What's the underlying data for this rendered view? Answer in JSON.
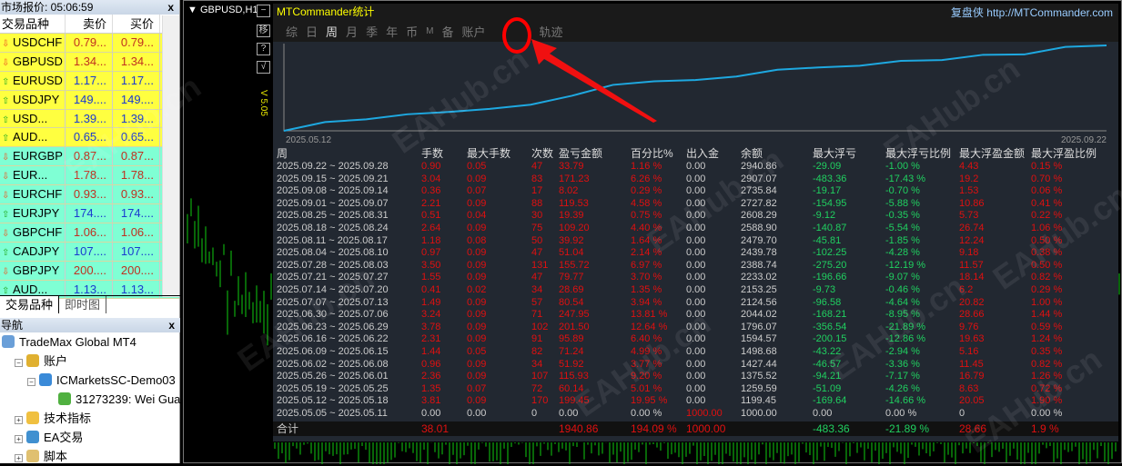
{
  "market_watch": {
    "title": "市场报价: 05:06:59",
    "close": "x",
    "headers": [
      "交易品种",
      "卖价",
      "买价"
    ],
    "rows": [
      {
        "symbol": "USDCHF",
        "bid": "0.79...",
        "ask": "0.79...",
        "dir": "down",
        "bg": "#ffff40"
      },
      {
        "symbol": "GBPUSD",
        "bid": "1.34...",
        "ask": "1.34...",
        "dir": "down",
        "bg": "#ffff40"
      },
      {
        "symbol": "EURUSD",
        "bid": "1.17...",
        "ask": "1.17...",
        "dir": "up",
        "bg": "#ffff40"
      },
      {
        "symbol": "USDJPY",
        "bid": "149....",
        "ask": "149....",
        "dir": "up",
        "bg": "#ffff40"
      },
      {
        "symbol": "USD...",
        "bid": "1.39...",
        "ask": "1.39...",
        "dir": "up",
        "bg": "#ffff40"
      },
      {
        "symbol": "AUD...",
        "bid": "0.65...",
        "ask": "0.65...",
        "dir": "up",
        "bg": "#ffff40"
      },
      {
        "symbol": "EURGBP",
        "bid": "0.87...",
        "ask": "0.87...",
        "dir": "down",
        "bg": "#7fffd4"
      },
      {
        "symbol": "EUR...",
        "bid": "1.78...",
        "ask": "1.78...",
        "dir": "down",
        "bg": "#7fffd4"
      },
      {
        "symbol": "EURCHF",
        "bid": "0.93...",
        "ask": "0.93...",
        "dir": "down",
        "bg": "#7fffd4"
      },
      {
        "symbol": "EURJPY",
        "bid": "174....",
        "ask": "174....",
        "dir": "up",
        "bg": "#7fffd4"
      },
      {
        "symbol": "GBPCHF",
        "bid": "1.06...",
        "ask": "1.06...",
        "dir": "down",
        "bg": "#7fffd4"
      },
      {
        "symbol": "CADJPY",
        "bid": "107....",
        "ask": "107....",
        "dir": "up",
        "bg": "#7fffd4"
      },
      {
        "symbol": "GBPJPY",
        "bid": "200....",
        "ask": "200....",
        "dir": "down",
        "bg": "#7fffd4"
      },
      {
        "symbol": "AUD...",
        "bid": "1.13...",
        "ask": "1.13...",
        "dir": "up",
        "bg": "#7fffd4"
      }
    ],
    "tabs": [
      "交易品种",
      "即时图"
    ]
  },
  "navigator": {
    "title": "导航",
    "close": "x",
    "items": [
      {
        "label": "TradeMax Global MT4",
        "level": 0,
        "icon": "terminal-icon",
        "color": "#6a9fd8"
      },
      {
        "label": "账户",
        "level": 1,
        "icon": "accounts-icon",
        "color": "#e0b030",
        "pm": "−"
      },
      {
        "label": "ICMarketsSC-Demo03",
        "level": 2,
        "icon": "server-icon",
        "color": "#3a8ad8",
        "pm": "−"
      },
      {
        "label": "31273239: Wei Gua",
        "level": 3,
        "icon": "user-icon",
        "color": "#50b040"
      },
      {
        "label": "技术指标",
        "level": 1,
        "icon": "indicator-icon",
        "color": "#f0c040",
        "pm": "+"
      },
      {
        "label": "EA交易",
        "level": 1,
        "icon": "expert-icon",
        "color": "#4090d0",
        "pm": "+"
      },
      {
        "label": "脚本",
        "level": 1,
        "icon": "script-icon",
        "color": "#e0c070",
        "pm": "+"
      }
    ]
  },
  "chart": {
    "symbol": "GBPUSD,H1",
    "side_buttons": [
      "−",
      "移",
      "?",
      "√"
    ],
    "version": "V 5.05"
  },
  "panel": {
    "title": "MTCommander统计",
    "brand": "复盘侠",
    "link": "http://MTCommander.com",
    "tabs": [
      "综",
      "日",
      "周",
      "月",
      "季",
      "年",
      "币",
      "M",
      "备",
      "账户",
      "轨迹"
    ],
    "active_tab": "周",
    "equity": {
      "start_label": "2025.05.12",
      "end_label": "2025.09.22"
    },
    "columns": [
      "周",
      "手数",
      "最大手数",
      "次数",
      "盈亏金额",
      "百分比%",
      "出入金",
      "余额",
      "最大浮亏",
      "最大浮亏比例",
      "最大浮盈金额",
      "最大浮盈比例"
    ],
    "rows": [
      [
        "2025.09.22 ~ 2025.09.28",
        "0.90",
        "0.05",
        "47",
        "33.79",
        "1.16 %",
        "0.00",
        "2940.86",
        "-29.09",
        "-1.00 %",
        "4.43",
        "0.15 %"
      ],
      [
        "2025.09.15 ~ 2025.09.21",
        "3.04",
        "0.09",
        "83",
        "171.23",
        "6.26 %",
        "0.00",
        "2907.07",
        "-483.36",
        "-17.43 %",
        "19.2",
        "0.70 %"
      ],
      [
        "2025.09.08 ~ 2025.09.14",
        "0.36",
        "0.07",
        "17",
        "8.02",
        "0.29 %",
        "0.00",
        "2735.84",
        "-19.17",
        "-0.70 %",
        "1.53",
        "0.06 %"
      ],
      [
        "2025.09.01 ~ 2025.09.07",
        "2.21",
        "0.09",
        "88",
        "119.53",
        "4.58 %",
        "0.00",
        "2727.82",
        "-154.95",
        "-5.88 %",
        "10.86",
        "0.41 %"
      ],
      [
        "2025.08.25 ~ 2025.08.31",
        "0.51",
        "0.04",
        "30",
        "19.39",
        "0.75 %",
        "0.00",
        "2608.29",
        "-9.12",
        "-0.35 %",
        "5.73",
        "0.22 %"
      ],
      [
        "2025.08.18 ~ 2025.08.24",
        "2.64",
        "0.09",
        "75",
        "109.20",
        "4.40 %",
        "0.00",
        "2588.90",
        "-140.87",
        "-5.54 %",
        "26.74",
        "1.06 %"
      ],
      [
        "2025.08.11 ~ 2025.08.17",
        "1.18",
        "0.08",
        "50",
        "39.92",
        "1.64 %",
        "0.00",
        "2479.70",
        "-45.81",
        "-1.85 %",
        "12.24",
        "0.50 %"
      ],
      [
        "2025.08.04 ~ 2025.08.10",
        "0.97",
        "0.09",
        "47",
        "51.04",
        "2.14 %",
        "0.00",
        "2439.78",
        "-102.25",
        "-4.28 %",
        "9.18",
        "0.38 %"
      ],
      [
        "2025.07.28 ~ 2025.08.03",
        "3.50",
        "0.09",
        "131",
        "155.72",
        "6.97 %",
        "0.00",
        "2388.74",
        "-275.20",
        "-12.19 %",
        "11.57",
        "0.50 %"
      ],
      [
        "2025.07.21 ~ 2025.07.27",
        "1.55",
        "0.09",
        "47",
        "79.77",
        "3.70 %",
        "0.00",
        "2233.02",
        "-196.66",
        "-9.07 %",
        "18.14",
        "0.82 %"
      ],
      [
        "2025.07.14 ~ 2025.07.20",
        "0.41",
        "0.02",
        "34",
        "28.69",
        "1.35 %",
        "0.00",
        "2153.25",
        "-9.73",
        "-0.46 %",
        "6.2",
        "0.29 %"
      ],
      [
        "2025.07.07 ~ 2025.07.13",
        "1.49",
        "0.09",
        "57",
        "80.54",
        "3.94 %",
        "0.00",
        "2124.56",
        "-96.58",
        "-4.64 %",
        "20.82",
        "1.00 %"
      ],
      [
        "2025.06.30 ~ 2025.07.06",
        "3.24",
        "0.09",
        "71",
        "247.95",
        "13.81 %",
        "0.00",
        "2044.02",
        "-168.21",
        "-8.95 %",
        "28.66",
        "1.44 %"
      ],
      [
        "2025.06.23 ~ 2025.06.29",
        "3.78",
        "0.09",
        "102",
        "201.50",
        "12.64 %",
        "0.00",
        "1796.07",
        "-356.54",
        "-21.89 %",
        "9.76",
        "0.59 %"
      ],
      [
        "2025.06.16 ~ 2025.06.22",
        "2.31",
        "0.09",
        "91",
        "95.89",
        "6.40 %",
        "0.00",
        "1594.57",
        "-200.15",
        "-12.86 %",
        "19.63",
        "1.24 %"
      ],
      [
        "2025.06.09 ~ 2025.06.15",
        "1.44",
        "0.05",
        "82",
        "71.24",
        "4.99 %",
        "0.00",
        "1498.68",
        "-43.22",
        "-2.94 %",
        "5.16",
        "0.35 %"
      ],
      [
        "2025.06.02 ~ 2025.06.08",
        "0.96",
        "0.09",
        "34",
        "51.92",
        "3.77 %",
        "0.00",
        "1427.44",
        "-46.57",
        "-3.36 %",
        "11.45",
        "0.82 %"
      ],
      [
        "2025.05.26 ~ 2025.06.01",
        "2.36",
        "0.09",
        "107",
        "115.93",
        "9.20 %",
        "0.00",
        "1375.52",
        "-94.21",
        "-7.17 %",
        "16.79",
        "1.26 %"
      ],
      [
        "2025.05.19 ~ 2025.05.25",
        "1.35",
        "0.07",
        "72",
        "60.14",
        "5.01 %",
        "0.00",
        "1259.59",
        "-51.09",
        "-4.26 %",
        "8.63",
        "0.72 %"
      ],
      [
        "2025.05.12 ~ 2025.05.18",
        "3.81",
        "0.09",
        "170",
        "199.45",
        "19.95 %",
        "0.00",
        "1199.45",
        "-169.64",
        "-14.66 %",
        "20.05",
        "1.90 %"
      ],
      [
        "2025.05.05 ~ 2025.05.11",
        "0.00",
        "0.00",
        "0",
        "0.00",
        "0.00 %",
        "1000.00",
        "1000.00",
        "0.00",
        "0.00 %",
        "0",
        "0.00 %"
      ]
    ],
    "total": [
      "合计",
      "38.01",
      "",
      "",
      "1940.86",
      "194.09 %",
      "1000.00",
      "",
      "-483.36",
      "-21.89 %",
      "28.66",
      "1.9 %"
    ]
  },
  "watermark": "EAHub.cn",
  "colors": {
    "profit": "#e01010",
    "loss": "#20d060",
    "curve": "#1ea8e0",
    "annotation": "#ff0000"
  }
}
